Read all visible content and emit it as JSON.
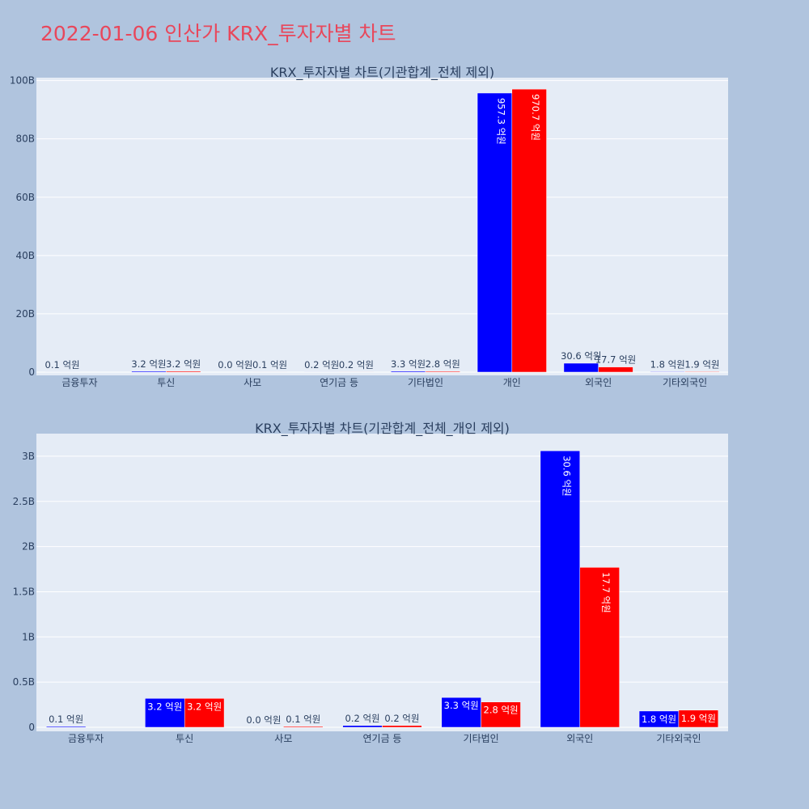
{
  "title": "2022-01-06 인산가 KRX_투자자별 차트",
  "colors": {
    "background": "#b0c4de",
    "plot_bg": "#e5ecf6",
    "grid": "#ffffff",
    "buy": "#0000ff",
    "sell": "#ff0000",
    "title": "#e8475b",
    "text": "#2a3f5f"
  },
  "chart_data": [
    {
      "type": "bar",
      "title": "KRX_투자자별 차트(기관합계_전체 제외)",
      "categories": [
        "금융투자",
        "투신",
        "사모",
        "연기금 등",
        "기타법인",
        "개인",
        "외국인",
        "기타외국인"
      ],
      "ylim": [
        0,
        101
      ],
      "yticks": [
        0,
        20,
        40,
        60,
        80,
        100
      ],
      "ytick_labels": [
        "0",
        "20B",
        "40B",
        "60B",
        "80B",
        "100B"
      ],
      "grid": true,
      "series": [
        {
          "color": "#0000ff",
          "values": [
            0.01,
            0.32,
            0.0,
            0.02,
            0.33,
            95.73,
            3.06,
            0.18
          ],
          "labels": [
            "0.1 억원",
            "3.2 억원",
            "0.0 억원",
            "0.2 억원",
            "3.3 억원",
            "957.3 억원",
            "30.6 억원",
            "1.8 억원"
          ]
        },
        {
          "color": "#ff0000",
          "values": [
            0.0,
            0.32,
            0.01,
            0.02,
            0.28,
            97.07,
            1.77,
            0.19
          ],
          "labels": [
            "",
            "3.2 억원",
            "0.1 억원",
            "0.2 억원",
            "2.8 억원",
            "970.7 억원",
            "17.7 억원",
            "1.9 억원"
          ]
        }
      ]
    },
    {
      "type": "bar",
      "title": "KRX_투자자별 차트(기관합계_전체_개인 제외)",
      "categories": [
        "금융투자",
        "투신",
        "사모",
        "연기금 등",
        "기타법인",
        "외국인",
        "기타외국인"
      ],
      "ylim": [
        0,
        3.25
      ],
      "yticks": [
        0,
        0.5,
        1,
        1.5,
        2,
        2.5,
        3
      ],
      "ytick_labels": [
        "0",
        "0.5B",
        "1B",
        "1.5B",
        "2B",
        "2.5B",
        "3B"
      ],
      "grid": true,
      "series": [
        {
          "color": "#0000ff",
          "values": [
            0.01,
            0.32,
            0.0,
            0.02,
            0.33,
            3.06,
            0.18
          ],
          "labels": [
            "0.1 억원",
            "3.2 억원",
            "0.0 억원",
            "0.2 억원",
            "3.3 억원",
            "30.6 억원",
            "1.8 억원"
          ]
        },
        {
          "color": "#ff0000",
          "values": [
            0.0,
            0.32,
            0.01,
            0.02,
            0.28,
            1.77,
            0.19
          ],
          "labels": [
            "",
            "3.2 억원",
            "0.1 억원",
            "0.2 억원",
            "2.8 억원",
            "17.7 억원",
            "1.9 억원"
          ]
        }
      ]
    }
  ]
}
